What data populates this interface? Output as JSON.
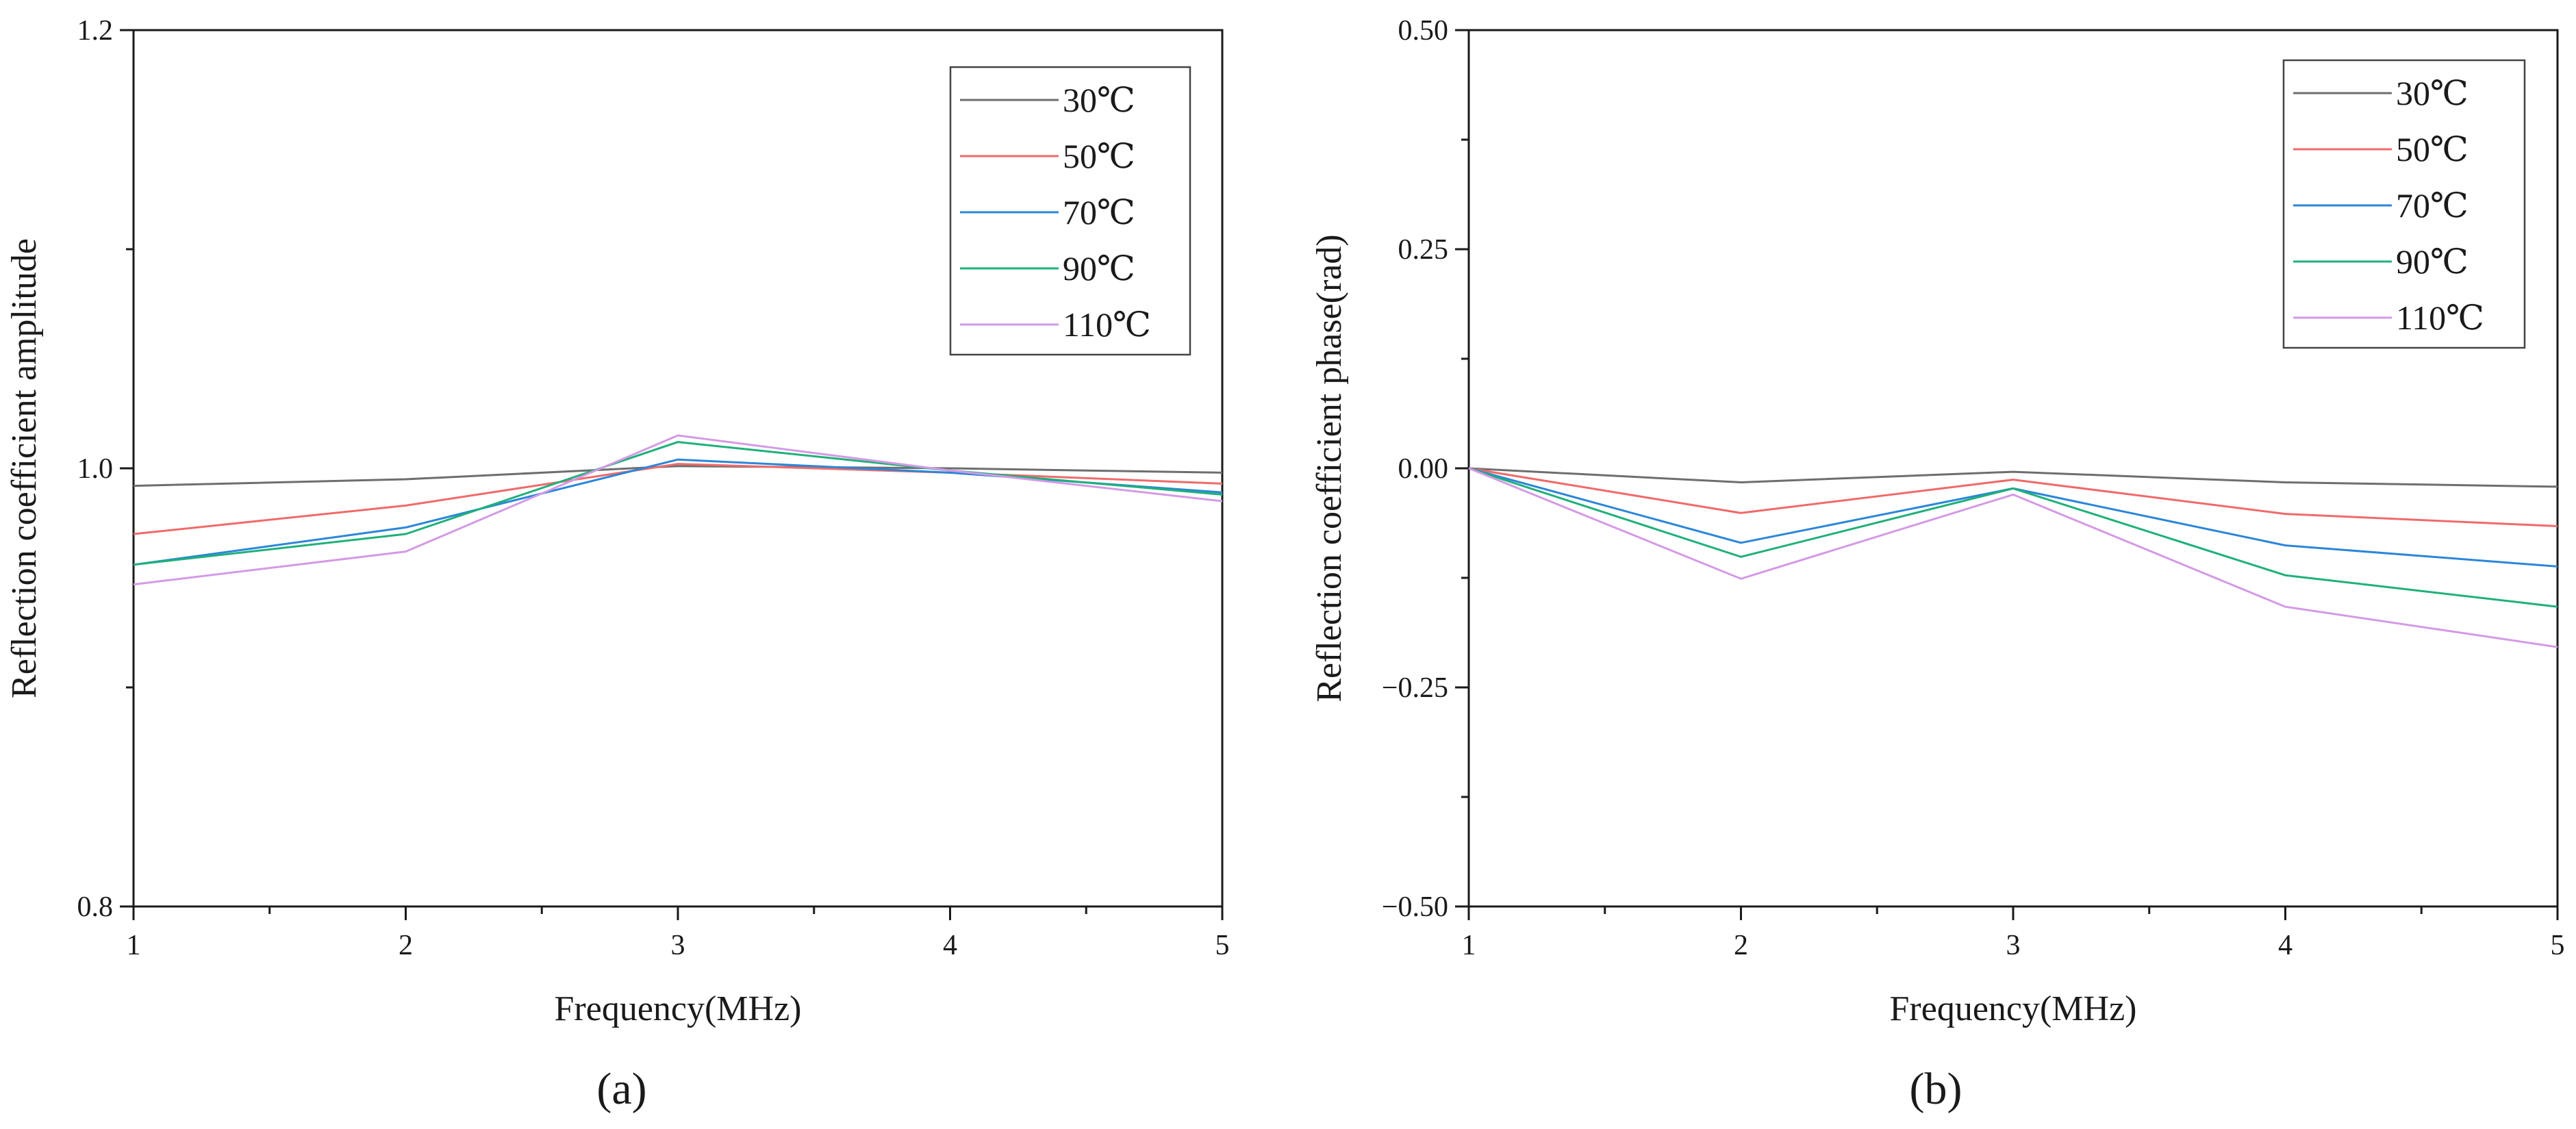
{
  "chart_data": [
    {
      "type": "line",
      "panel_label": "(a)",
      "title": "",
      "xlabel": "Frequency(MHz)",
      "ylabel": "Reflection coefficient amplitude",
      "x": [
        1,
        2,
        3,
        4,
        5
      ],
      "xlim": [
        1,
        5
      ],
      "ylim": [
        0.8,
        1.2
      ],
      "xticks": [
        1,
        2,
        3,
        4,
        5
      ],
      "xtick_labels": [
        "1",
        "2",
        "3",
        "4",
        "5"
      ],
      "yticks": [
        0.8,
        1.0,
        1.2
      ],
      "ytick_labels": [
        "0.8",
        "1.0",
        "1.2"
      ],
      "legend_position": "top-right",
      "grid": false,
      "series": [
        {
          "name": "30℃",
          "color": "#6e6e6e",
          "values": [
            0.992,
            0.995,
            1.001,
            1.0,
            0.998
          ]
        },
        {
          "name": "50℃",
          "color": "#f06a6a",
          "values": [
            0.97,
            0.983,
            1.002,
            0.998,
            0.993
          ]
        },
        {
          "name": "70℃",
          "color": "#2b86d9",
          "values": [
            0.956,
            0.973,
            1.004,
            0.998,
            0.989
          ]
        },
        {
          "name": "90℃",
          "color": "#1fb07a",
          "values": [
            0.956,
            0.97,
            1.012,
            0.999,
            0.988
          ]
        },
        {
          "name": "110℃",
          "color": "#d49ae6",
          "values": [
            0.947,
            0.962,
            1.015,
            0.999,
            0.985
          ]
        }
      ]
    },
    {
      "type": "line",
      "panel_label": "(b)",
      "title": "",
      "xlabel": "Frequency(MHz)",
      "ylabel": "Reflection coefficient phase(rad)",
      "x": [
        1,
        2,
        3,
        4,
        5
      ],
      "xlim": [
        1,
        5
      ],
      "ylim": [
        -0.5,
        0.5
      ],
      "xticks": [
        1,
        2,
        3,
        4,
        5
      ],
      "xtick_labels": [
        "1",
        "2",
        "3",
        "4",
        "5"
      ],
      "yticks": [
        -0.5,
        -0.25,
        0.0,
        0.25,
        0.5
      ],
      "ytick_labels": [
        "−0.50",
        "−0.25",
        "0.00",
        "0.25",
        "0.50"
      ],
      "legend_position": "top-right",
      "grid": false,
      "series": [
        {
          "name": "30℃",
          "color": "#6e6e6e",
          "values": [
            0.0,
            -0.016,
            -0.004,
            -0.016,
            -0.021
          ]
        },
        {
          "name": "50℃",
          "color": "#f06a6a",
          "values": [
            0.0,
            -0.051,
            -0.013,
            -0.052,
            -0.066
          ]
        },
        {
          "name": "70℃",
          "color": "#2b86d9",
          "values": [
            0.0,
            -0.085,
            -0.023,
            -0.088,
            -0.112
          ]
        },
        {
          "name": "90℃",
          "color": "#1fb07a",
          "values": [
            0.0,
            -0.101,
            -0.023,
            -0.122,
            -0.158
          ]
        },
        {
          "name": "110℃",
          "color": "#d49ae6",
          "values": [
            0.0,
            -0.126,
            -0.03,
            -0.158,
            -0.204
          ]
        }
      ]
    }
  ]
}
